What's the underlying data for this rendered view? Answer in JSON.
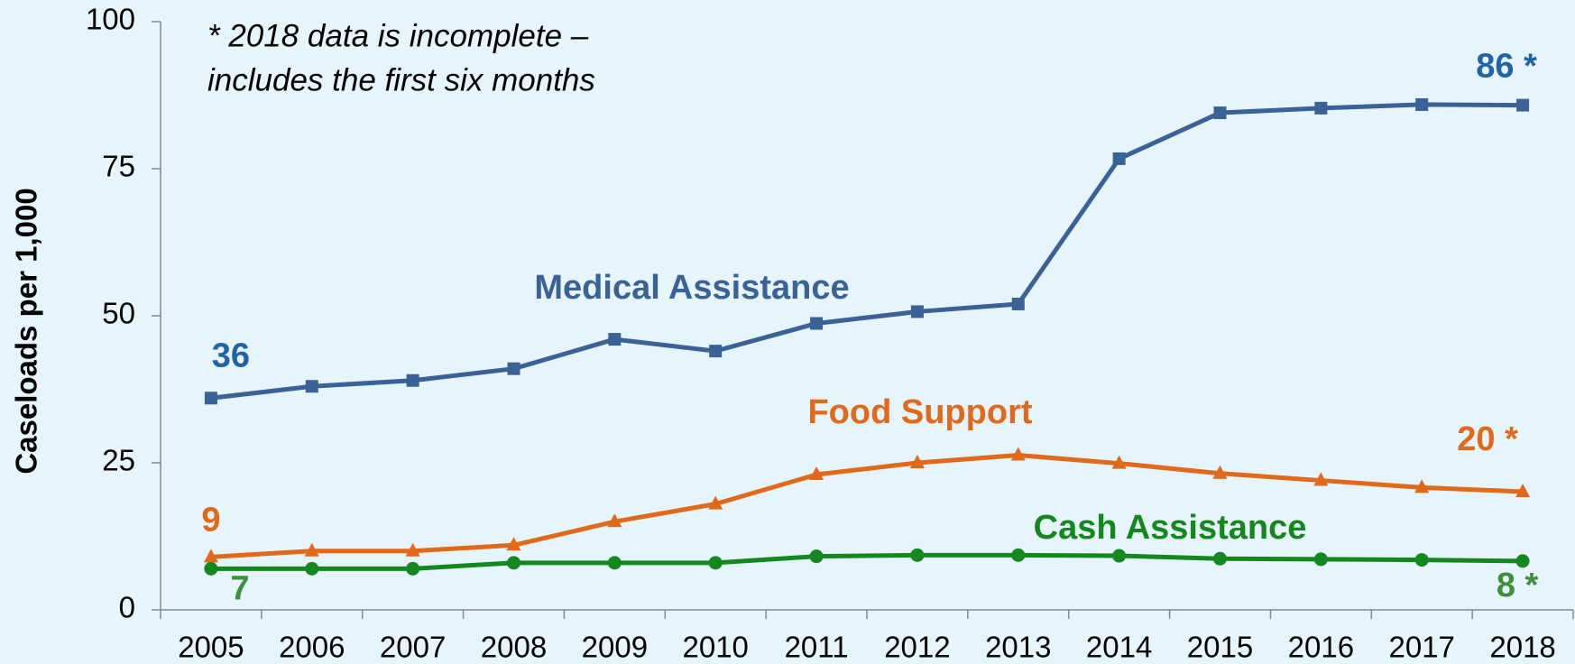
{
  "chart_data": {
    "type": "line",
    "annotation": [
      "* 2018 data is incomplete –",
      "includes the first six months"
    ],
    "y_label": "Caseloads per 1,000",
    "categories": [
      "2005",
      "2006",
      "2007",
      "2008",
      "2009",
      "2010",
      "2011",
      "2012",
      "2013",
      "2014",
      "2015",
      "2016",
      "2017",
      "2018"
    ],
    "series": [
      {
        "name": "Medical Assistance",
        "color": "#3a6296",
        "label_color": "#1f65a6",
        "marker": "square",
        "values": [
          36,
          38,
          39,
          41,
          46,
          44,
          48.7,
          50.7,
          52,
          76.7,
          84.5,
          85.3,
          85.9,
          85.8
        ],
        "value_labels": [
          "36",
          null,
          null,
          null,
          null,
          null,
          null,
          null,
          null,
          null,
          null,
          null,
          null,
          "86 *"
        ]
      },
      {
        "name": "Food Support",
        "color": "#e0691a",
        "label_color": "#e0691a",
        "marker": "triangle",
        "values": [
          9,
          10,
          10,
          11,
          15,
          18,
          23,
          25,
          26.3,
          24.9,
          23.2,
          22,
          20.8,
          20.1
        ],
        "value_labels": [
          "9",
          null,
          null,
          null,
          null,
          null,
          null,
          null,
          null,
          null,
          null,
          null,
          null,
          "20 *"
        ]
      },
      {
        "name": "Cash Assistance",
        "color": "#14871e",
        "label_color": "#3f8f3f",
        "marker": "circle",
        "values": [
          7,
          7,
          7,
          8,
          8,
          8,
          9.1,
          9.3,
          9.3,
          9.2,
          8.7,
          8.6,
          8.5,
          8.3
        ],
        "value_labels": [
          "7",
          null,
          null,
          null,
          null,
          null,
          null,
          null,
          null,
          null,
          null,
          null,
          null,
          "8 *"
        ]
      }
    ],
    "ylim": [
      0,
      100
    ],
    "yticks": [
      0,
      25,
      50,
      75,
      100
    ],
    "grid": false
  }
}
